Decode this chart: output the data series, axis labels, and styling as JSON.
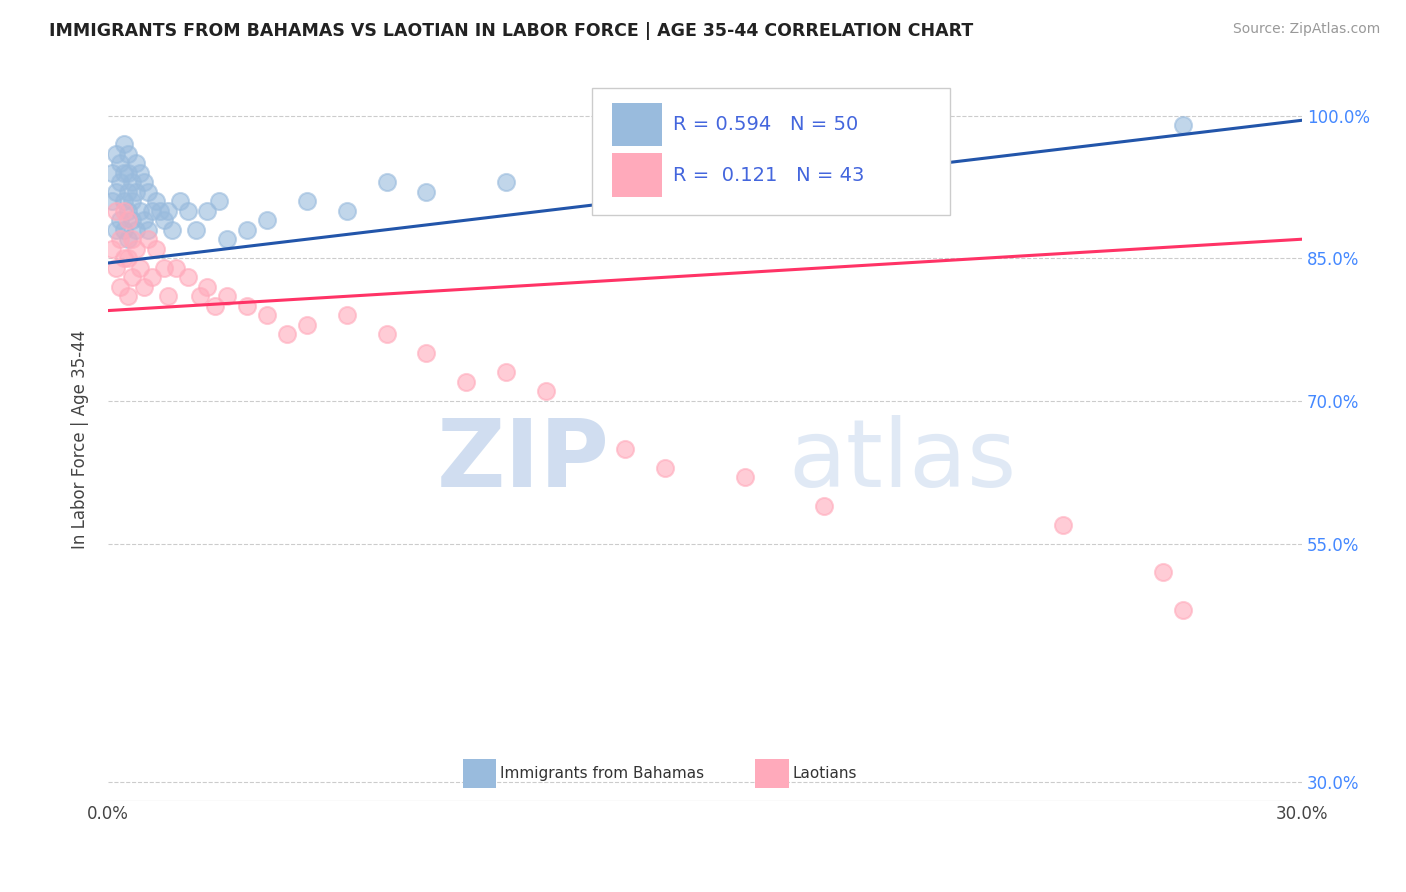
{
  "title": "IMMIGRANTS FROM BAHAMAS VS LAOTIAN IN LABOR FORCE | AGE 35-44 CORRELATION CHART",
  "source": "Source: ZipAtlas.com",
  "ylabel": "In Labor Force | Age 35-44",
  "r1": "0.594",
  "n1": "50",
  "r2": "0.121",
  "n2": "43",
  "blue_color": "#99BBDD",
  "pink_color": "#FFAABB",
  "blue_line_color": "#2255AA",
  "pink_line_color": "#FF3366",
  "xlim": [
    0.0,
    0.3
  ],
  "ylim": [
    0.28,
    1.04
  ],
  "ytick_vals": [
    0.3,
    0.55,
    0.7,
    0.85,
    1.0
  ],
  "ytick_labels": [
    "30.0%",
    "55.0%",
    "70.0%",
    "85.0%",
    "100.0%"
  ],
  "xtick_vals": [
    0.0,
    0.3
  ],
  "xtick_labels": [
    "0.0%",
    "30.0%"
  ],
  "legend_label1": "Immigrants from Bahamas",
  "legend_label2": "Laotians",
  "blue_trend": [
    0.0,
    0.3,
    0.845,
    0.995
  ],
  "pink_trend": [
    0.0,
    0.3,
    0.795,
    0.87
  ],
  "bahamas_x": [
    0.001,
    0.001,
    0.002,
    0.002,
    0.002,
    0.003,
    0.003,
    0.003,
    0.004,
    0.004,
    0.004,
    0.004,
    0.005,
    0.005,
    0.005,
    0.005,
    0.005,
    0.006,
    0.006,
    0.006,
    0.007,
    0.007,
    0.007,
    0.008,
    0.008,
    0.009,
    0.009,
    0.01,
    0.01,
    0.011,
    0.012,
    0.013,
    0.014,
    0.015,
    0.016,
    0.018,
    0.02,
    0.022,
    0.025,
    0.028,
    0.03,
    0.035,
    0.04,
    0.05,
    0.06,
    0.07,
    0.08,
    0.1,
    0.16,
    0.27
  ],
  "bahamas_y": [
    0.94,
    0.91,
    0.96,
    0.92,
    0.88,
    0.95,
    0.93,
    0.89,
    0.97,
    0.94,
    0.91,
    0.88,
    0.96,
    0.94,
    0.92,
    0.9,
    0.87,
    0.93,
    0.91,
    0.89,
    0.95,
    0.92,
    0.88,
    0.94,
    0.9,
    0.93,
    0.89,
    0.92,
    0.88,
    0.9,
    0.91,
    0.9,
    0.89,
    0.9,
    0.88,
    0.91,
    0.9,
    0.88,
    0.9,
    0.91,
    0.87,
    0.88,
    0.89,
    0.91,
    0.9,
    0.93,
    0.92,
    0.93,
    0.96,
    0.99
  ],
  "laotian_x": [
    0.001,
    0.002,
    0.002,
    0.003,
    0.003,
    0.004,
    0.004,
    0.005,
    0.005,
    0.005,
    0.006,
    0.006,
    0.007,
    0.008,
    0.009,
    0.01,
    0.011,
    0.012,
    0.014,
    0.015,
    0.017,
    0.02,
    0.023,
    0.025,
    0.027,
    0.03,
    0.035,
    0.04,
    0.045,
    0.05,
    0.06,
    0.07,
    0.08,
    0.09,
    0.1,
    0.11,
    0.13,
    0.14,
    0.16,
    0.18,
    0.24,
    0.265,
    0.27
  ],
  "laotian_y": [
    0.86,
    0.9,
    0.84,
    0.87,
    0.82,
    0.9,
    0.85,
    0.89,
    0.85,
    0.81,
    0.87,
    0.83,
    0.86,
    0.84,
    0.82,
    0.87,
    0.83,
    0.86,
    0.84,
    0.81,
    0.84,
    0.83,
    0.81,
    0.82,
    0.8,
    0.81,
    0.8,
    0.79,
    0.77,
    0.78,
    0.79,
    0.77,
    0.75,
    0.72,
    0.73,
    0.71,
    0.65,
    0.63,
    0.62,
    0.59,
    0.57,
    0.52,
    0.48
  ],
  "watermark_zip": "ZIP",
  "watermark_atlas": "atlas",
  "background_color": "#FFFFFF",
  "grid_color": "#CCCCCC"
}
